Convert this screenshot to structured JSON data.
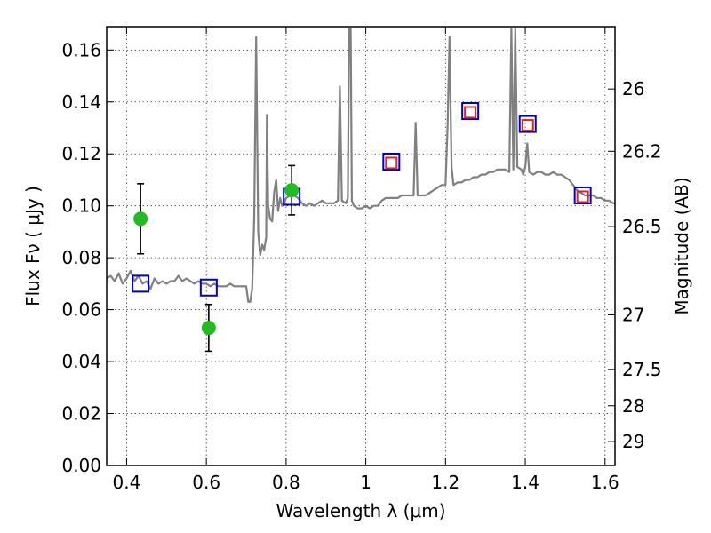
{
  "chart_data": {
    "type": "line",
    "xlabel": "Wavelength  λ (μm)",
    "ylabel": "Flux  Fν  ( μJy )",
    "ylabel_right": "Magnitude (AB)",
    "xlim": [
      0.35,
      1.625
    ],
    "ylim": [
      0.0,
      0.169
    ],
    "grid": true,
    "x_ticks": [
      0.4,
      0.6,
      0.8,
      1.0,
      1.2,
      1.4,
      1.6
    ],
    "x_tick_labels": [
      "0.4",
      "0.6",
      "0.8",
      "1",
      "1.2",
      "1.4",
      "1.6"
    ],
    "y_ticks": [
      0.0,
      0.02,
      0.04,
      0.06,
      0.08,
      0.1,
      0.12,
      0.14,
      0.16
    ],
    "y_tick_labels": [
      "0.00",
      "0.02",
      "0.04",
      "0.06",
      "0.08",
      "0.10",
      "0.12",
      "0.14",
      "0.16"
    ],
    "right_ticks": [
      {
        "label": "26",
        "flux": 0.145
      },
      {
        "label": "26.2",
        "flux": 0.121
      },
      {
        "label": "26.5",
        "flux": 0.092
      },
      {
        "label": "27",
        "flux": 0.058
      },
      {
        "label": "27.5",
        "flux": 0.037
      },
      {
        "label": "28",
        "flux": 0.023
      },
      {
        "label": "29",
        "flux": 0.0092
      }
    ],
    "colors": {
      "spectrum": "#808080",
      "observed": "#22bb22",
      "model_blue": "#0000cc",
      "model_red": "#dd2222"
    },
    "series": [
      {
        "role": "model-spectrum",
        "points": [
          [
            0.35,
            0.072
          ],
          [
            0.36,
            0.073
          ],
          [
            0.37,
            0.071
          ],
          [
            0.38,
            0.074
          ],
          [
            0.39,
            0.07
          ],
          [
            0.4,
            0.072
          ],
          [
            0.41,
            0.075
          ],
          [
            0.42,
            0.071
          ],
          [
            0.43,
            0.073
          ],
          [
            0.44,
            0.07
          ],
          [
            0.45,
            0.071
          ],
          [
            0.46,
            0.068
          ],
          [
            0.47,
            0.072
          ],
          [
            0.48,
            0.07
          ],
          [
            0.49,
            0.071
          ],
          [
            0.5,
            0.07
          ],
          [
            0.51,
            0.071
          ],
          [
            0.52,
            0.071
          ],
          [
            0.53,
            0.073
          ],
          [
            0.54,
            0.071
          ],
          [
            0.55,
            0.072
          ],
          [
            0.56,
            0.071
          ],
          [
            0.57,
            0.07
          ],
          [
            0.58,
            0.071
          ],
          [
            0.59,
            0.07
          ],
          [
            0.6,
            0.07
          ],
          [
            0.61,
            0.069
          ],
          [
            0.62,
            0.07
          ],
          [
            0.63,
            0.069
          ],
          [
            0.64,
            0.069
          ],
          [
            0.65,
            0.069
          ],
          [
            0.66,
            0.07
          ],
          [
            0.67,
            0.069
          ],
          [
            0.68,
            0.069
          ],
          [
            0.69,
            0.069
          ],
          [
            0.7,
            0.069
          ],
          [
            0.705,
            0.063
          ],
          [
            0.71,
            0.063
          ],
          [
            0.715,
            0.068
          ],
          [
            0.72,
            0.095
          ],
          [
            0.725,
            0.165
          ],
          [
            0.73,
            0.09
          ],
          [
            0.735,
            0.081
          ],
          [
            0.74,
            0.085
          ],
          [
            0.745,
            0.083
          ],
          [
            0.75,
            0.088
          ],
          [
            0.752,
            0.135
          ],
          [
            0.755,
            0.1
          ],
          [
            0.76,
            0.095
          ],
          [
            0.765,
            0.094
          ],
          [
            0.77,
            0.105
          ],
          [
            0.775,
            0.11
          ],
          [
            0.78,
            0.098
          ],
          [
            0.785,
            0.103
          ],
          [
            0.79,
            0.1
          ],
          [
            0.795,
            0.101
          ],
          [
            0.8,
            0.103
          ],
          [
            0.81,
            0.104
          ],
          [
            0.82,
            0.104
          ],
          [
            0.83,
            0.103
          ],
          [
            0.84,
            0.101
          ],
          [
            0.85,
            0.1
          ],
          [
            0.86,
            0.101
          ],
          [
            0.87,
            0.1
          ],
          [
            0.88,
            0.101
          ],
          [
            0.89,
            0.102
          ],
          [
            0.9,
            0.101
          ],
          [
            0.91,
            0.101
          ],
          [
            0.92,
            0.101
          ],
          [
            0.93,
            0.102
          ],
          [
            0.935,
            0.146
          ],
          [
            0.94,
            0.102
          ],
          [
            0.95,
            0.101
          ],
          [
            0.955,
            0.103
          ],
          [
            0.958,
            0.168
          ],
          [
            0.962,
            0.168
          ],
          [
            0.965,
            0.102
          ],
          [
            0.97,
            0.1
          ],
          [
            0.98,
            0.099
          ],
          [
            0.99,
            0.099
          ],
          [
            1.0,
            0.1
          ],
          [
            1.01,
            0.099
          ],
          [
            1.02,
            0.1
          ],
          [
            1.03,
            0.1
          ],
          [
            1.04,
            0.102
          ],
          [
            1.05,
            0.103
          ],
          [
            1.06,
            0.103
          ],
          [
            1.07,
            0.103
          ],
          [
            1.08,
            0.103
          ],
          [
            1.09,
            0.104
          ],
          [
            1.1,
            0.104
          ],
          [
            1.11,
            0.104
          ],
          [
            1.12,
            0.104
          ],
          [
            1.125,
            0.132
          ],
          [
            1.13,
            0.104
          ],
          [
            1.14,
            0.104
          ],
          [
            1.15,
            0.104
          ],
          [
            1.16,
            0.105
          ],
          [
            1.17,
            0.106
          ],
          [
            1.18,
            0.107
          ],
          [
            1.19,
            0.108
          ],
          [
            1.2,
            0.108
          ],
          [
            1.205,
            0.13
          ],
          [
            1.21,
            0.165
          ],
          [
            1.215,
            0.115
          ],
          [
            1.22,
            0.108
          ],
          [
            1.23,
            0.109
          ],
          [
            1.24,
            0.109
          ],
          [
            1.25,
            0.11
          ],
          [
            1.26,
            0.11
          ],
          [
            1.27,
            0.111
          ],
          [
            1.28,
            0.111
          ],
          [
            1.29,
            0.112
          ],
          [
            1.3,
            0.112
          ],
          [
            1.31,
            0.113
          ],
          [
            1.32,
            0.113
          ],
          [
            1.33,
            0.114
          ],
          [
            1.34,
            0.114
          ],
          [
            1.35,
            0.114
          ],
          [
            1.36,
            0.113
          ],
          [
            1.365,
            0.168
          ],
          [
            1.37,
            0.114
          ],
          [
            1.375,
            0.168
          ],
          [
            1.38,
            0.115
          ],
          [
            1.39,
            0.114
          ],
          [
            1.395,
            0.112
          ],
          [
            1.4,
            0.115
          ],
          [
            1.405,
            0.124
          ],
          [
            1.41,
            0.113
          ],
          [
            1.42,
            0.112
          ],
          [
            1.43,
            0.113
          ],
          [
            1.44,
            0.113
          ],
          [
            1.45,
            0.112
          ],
          [
            1.46,
            0.112
          ],
          [
            1.47,
            0.113
          ],
          [
            1.48,
            0.112
          ],
          [
            1.49,
            0.112
          ],
          [
            1.5,
            0.111
          ],
          [
            1.51,
            0.11
          ],
          [
            1.52,
            0.108
          ],
          [
            1.53,
            0.106
          ],
          [
            1.54,
            0.105
          ],
          [
            1.55,
            0.104
          ],
          [
            1.56,
            0.104
          ],
          [
            1.57,
            0.104
          ],
          [
            1.58,
            0.103
          ],
          [
            1.59,
            0.103
          ],
          [
            1.6,
            0.102
          ],
          [
            1.61,
            0.102
          ],
          [
            1.62,
            0.101
          ],
          [
            1.625,
            0.101
          ]
        ]
      },
      {
        "role": "observed-photometry",
        "points": [
          {
            "x": 0.435,
            "y": 0.095,
            "err": 0.0135
          },
          {
            "x": 0.606,
            "y": 0.053,
            "err": 0.009
          },
          {
            "x": 0.814,
            "y": 0.106,
            "err": 0.0095
          }
        ]
      },
      {
        "role": "model-photometry",
        "points": [
          {
            "x": 0.435,
            "y": 0.07
          },
          {
            "x": 0.606,
            "y": 0.0685
          },
          {
            "x": 0.814,
            "y": 0.1035
          },
          {
            "x": 1.064,
            "y": 0.117
          },
          {
            "x": 1.262,
            "y": 0.1365
          },
          {
            "x": 1.406,
            "y": 0.1315
          },
          {
            "x": 1.544,
            "y": 0.104
          }
        ]
      },
      {
        "role": "model-photometry-alt",
        "points": [
          {
            "x": 1.064,
            "y": 0.1165
          },
          {
            "x": 1.262,
            "y": 0.136
          },
          {
            "x": 1.406,
            "y": 0.131
          },
          {
            "x": 1.544,
            "y": 0.1035
          }
        ]
      }
    ]
  }
}
